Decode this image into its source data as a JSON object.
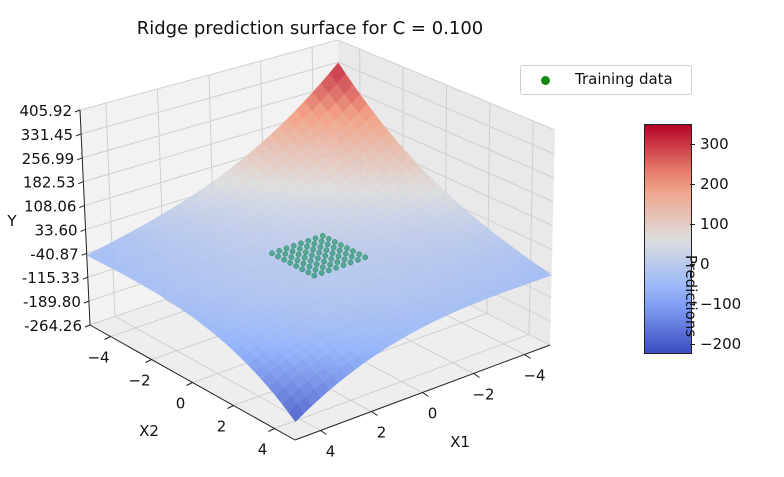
{
  "chart_data": {
    "type": "surface3d",
    "title": "Ridge prediction surface for C = 0.100",
    "xlabel": "X1",
    "ylabel": "X2",
    "zlabel": "Y",
    "x_range": [
      -5,
      5
    ],
    "y_range": [
      -5,
      5
    ],
    "xticks": [
      "−4",
      "−2",
      "0",
      "2",
      "4"
    ],
    "xtick_values": [
      -4,
      -2,
      0,
      2,
      4
    ],
    "yticks": [
      "−4",
      "−2",
      "0",
      "2",
      "4"
    ],
    "ytick_values": [
      -4,
      -2,
      0,
      2,
      4
    ],
    "zticks": [
      "405.92",
      "331.45",
      "256.99",
      "182.53",
      "108.06",
      "33.60",
      "-40.87",
      "-115.33",
      "-189.80",
      "-264.26"
    ],
    "zlim": [
      -264.26,
      405.92
    ],
    "surface_corner_values": {
      "x1_minus5_x2_minus5": 350,
      "x1_minus5_x2_plus5": 180,
      "x1_plus5_x2_minus5": 35,
      "x1_plus5_x2_plus5": -220,
      "center": 0
    },
    "legend": {
      "entries": [
        "Training data"
      ],
      "placement": "top-right"
    },
    "training_data": {
      "x1_range": [
        -1,
        1
      ],
      "x2_range": [
        -1,
        1
      ],
      "approx_y": 0,
      "color": "#2f9e73"
    },
    "colorbar": {
      "label": "Predictions",
      "colormap": "coolwarm",
      "min": -220,
      "max": 350,
      "ticks": [
        "300",
        "200",
        "100",
        "0",
        "−100",
        "−200"
      ],
      "tick_values": [
        300,
        200,
        100,
        0,
        -100,
        -200
      ]
    },
    "grid": true
  },
  "colors": {
    "cool": "#3b4cc0",
    "neutral": "#dddddd",
    "warm": "#b40426",
    "pane_left": "#f2f2f2",
    "pane_right": "#e9e9e9",
    "pane_floor": "#eeeeee",
    "grid": "#d0d0d0"
  }
}
